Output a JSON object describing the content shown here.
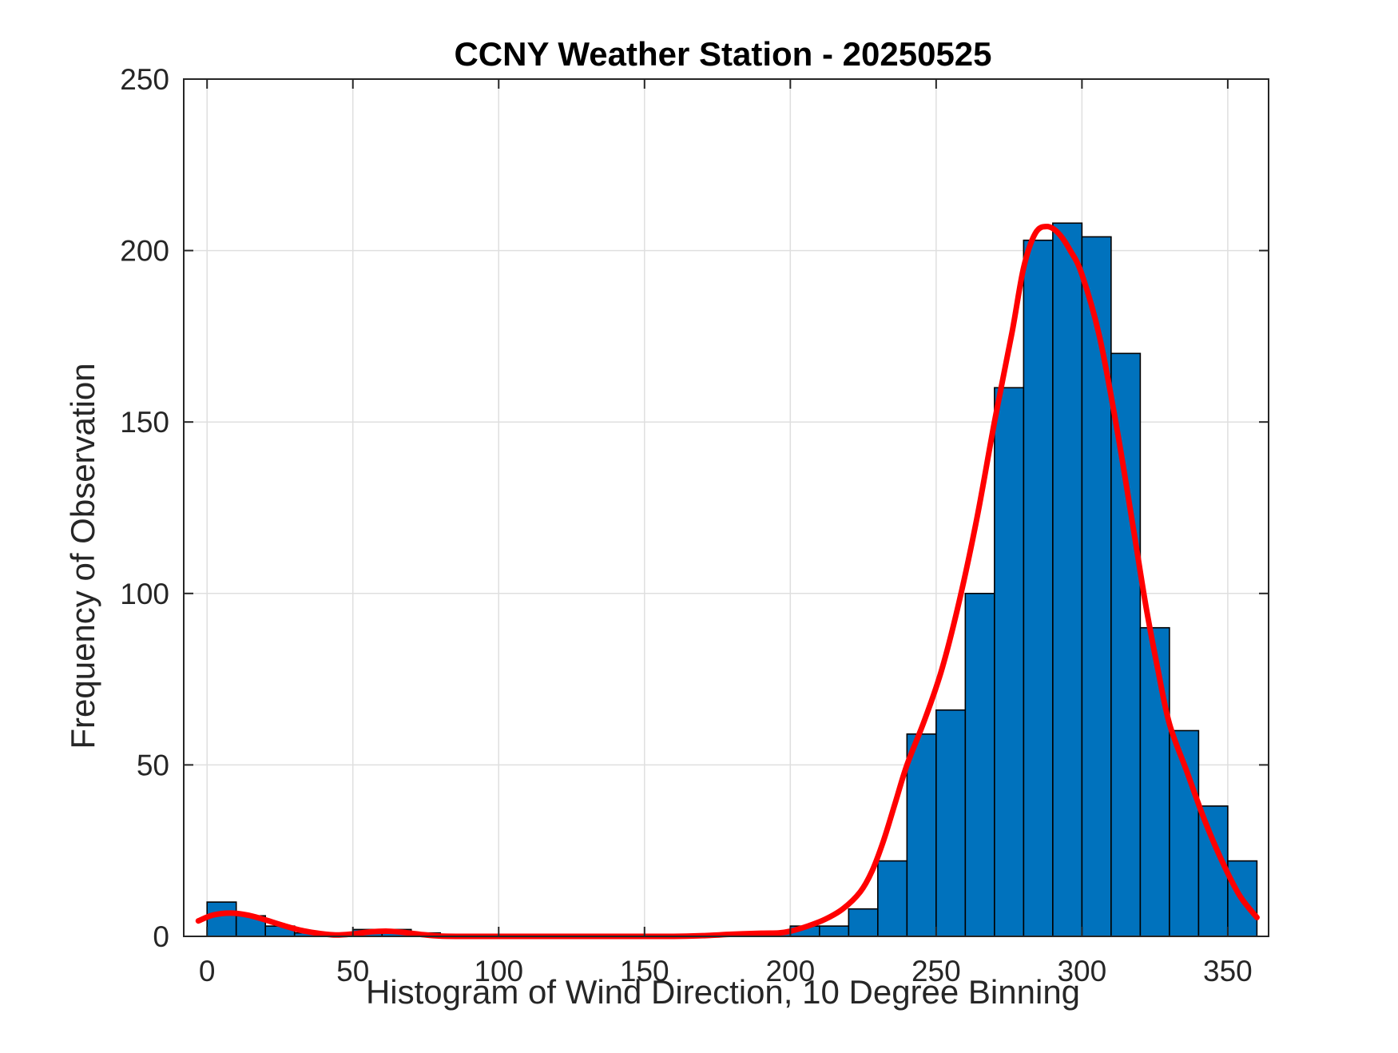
{
  "chart_data": {
    "type": "bar",
    "title": "CCNY Weather Station - 20250525",
    "xlabel": "Histogram of Wind Direction, 10 Degree Binning",
    "ylabel": "Frequency of Observation",
    "xlim": [
      -8,
      364
    ],
    "ylim": [
      0,
      250
    ],
    "xticks": [
      0,
      50,
      100,
      150,
      200,
      250,
      300,
      350
    ],
    "yticks": [
      0,
      50,
      100,
      150,
      200,
      250
    ],
    "grid": true,
    "bin_width": 10,
    "bins": [
      {
        "x0": 0,
        "x1": 10,
        "value": 10
      },
      {
        "x0": 10,
        "x1": 20,
        "value": 6
      },
      {
        "x0": 20,
        "x1": 30,
        "value": 3
      },
      {
        "x0": 30,
        "x1": 40,
        "value": 1
      },
      {
        "x0": 40,
        "x1": 50,
        "value": 0
      },
      {
        "x0": 50,
        "x1": 60,
        "value": 2
      },
      {
        "x0": 60,
        "x1": 70,
        "value": 2
      },
      {
        "x0": 70,
        "x1": 80,
        "value": 1
      },
      {
        "x0": 80,
        "x1": 90,
        "value": 0
      },
      {
        "x0": 90,
        "x1": 100,
        "value": 0
      },
      {
        "x0": 100,
        "x1": 110,
        "value": 0
      },
      {
        "x0": 110,
        "x1": 120,
        "value": 0
      },
      {
        "x0": 120,
        "x1": 130,
        "value": 0
      },
      {
        "x0": 130,
        "x1": 140,
        "value": 0
      },
      {
        "x0": 140,
        "x1": 150,
        "value": 0
      },
      {
        "x0": 150,
        "x1": 160,
        "value": 0
      },
      {
        "x0": 160,
        "x1": 170,
        "value": 0
      },
      {
        "x0": 170,
        "x1": 180,
        "value": 0
      },
      {
        "x0": 180,
        "x1": 190,
        "value": 1
      },
      {
        "x0": 190,
        "x1": 200,
        "value": 1
      },
      {
        "x0": 200,
        "x1": 210,
        "value": 3
      },
      {
        "x0": 210,
        "x1": 220,
        "value": 3
      },
      {
        "x0": 220,
        "x1": 230,
        "value": 8
      },
      {
        "x0": 230,
        "x1": 240,
        "value": 22
      },
      {
        "x0": 240,
        "x1": 250,
        "value": 59
      },
      {
        "x0": 250,
        "x1": 260,
        "value": 66
      },
      {
        "x0": 260,
        "x1": 270,
        "value": 100
      },
      {
        "x0": 270,
        "x1": 280,
        "value": 160
      },
      {
        "x0": 280,
        "x1": 290,
        "value": 203
      },
      {
        "x0": 290,
        "x1": 300,
        "value": 208
      },
      {
        "x0": 300,
        "x1": 310,
        "value": 204
      },
      {
        "x0": 310,
        "x1": 320,
        "value": 170
      },
      {
        "x0": 320,
        "x1": 330,
        "value": 90
      },
      {
        "x0": 330,
        "x1": 340,
        "value": 60
      },
      {
        "x0": 340,
        "x1": 350,
        "value": 38
      },
      {
        "x0": 350,
        "x1": 360,
        "value": 22
      }
    ],
    "fit_curve": {
      "name": "density fit",
      "x": [
        -3,
        2,
        8,
        14,
        20,
        26,
        32,
        38,
        44,
        50,
        56,
        62,
        68,
        74,
        80,
        90,
        100,
        120,
        140,
        160,
        170,
        180,
        190,
        196,
        200,
        206,
        212,
        218,
        224,
        228,
        232,
        236,
        240,
        246,
        252,
        258,
        264,
        270,
        276,
        280,
        284,
        288,
        292,
        296,
        300,
        306,
        312,
        318,
        322,
        326,
        330,
        336,
        342,
        348,
        354,
        360
      ],
      "y": [
        4.5,
        6.2,
        6.8,
        6.2,
        4.8,
        3.2,
        1.8,
        0.9,
        0.4,
        0.7,
        1.3,
        1.5,
        1.1,
        0.5,
        0.1,
        0.0,
        0.0,
        0.0,
        0.0,
        0.0,
        0.2,
        0.6,
        0.9,
        1.0,
        1.5,
        3.0,
        5.0,
        8.0,
        13.0,
        19.0,
        28.0,
        39.0,
        50.0,
        63.0,
        78.0,
        98.0,
        122.0,
        150.0,
        176.0,
        195.0,
        205.0,
        207.0,
        205.0,
        200.0,
        193.0,
        175.0,
        148.0,
        117.0,
        96.0,
        78.0,
        62.0,
        48.0,
        34.0,
        22.0,
        12.0,
        5.5
      ]
    },
    "colors": {
      "bar_fill": "#0072BD",
      "bar_edge": "#000000",
      "curve": "#FF0000",
      "grid": "#DFDFDF",
      "axis": "#262626"
    }
  }
}
